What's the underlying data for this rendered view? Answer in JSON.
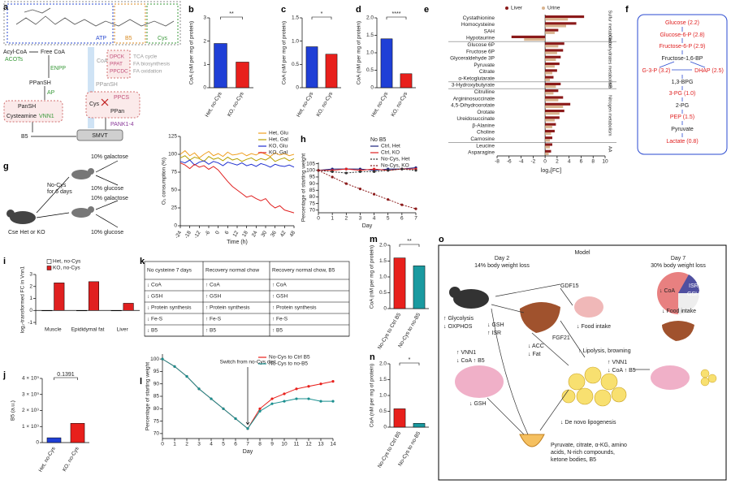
{
  "panel_labels": [
    "a",
    "b",
    "c",
    "d",
    "e",
    "f",
    "g",
    "h",
    "i",
    "j",
    "k",
    "l",
    "m",
    "n",
    "o"
  ],
  "diagram_a": {
    "atp": "ATP",
    "b5_top": "B5",
    "cys_top": "Cys",
    "acyl_coa": "Acyl-CoA",
    "acots": "ACOTs",
    "free_coa": "Free CoA",
    "enpp": "ENPP",
    "ppansh": "PPanSH",
    "ap": "AP",
    "pansh": "PanSH",
    "cysteamine": "Cysteamine",
    "vnn1": "VNN1",
    "b5_out": "B5",
    "smvt": "SMVT",
    "coa": "CoA",
    "enzymes": [
      "DPCK",
      "PPAT",
      "PPCDC"
    ],
    "fates": [
      "TCA cycle",
      "FA biosynthesis",
      "FA oxidation"
    ],
    "ppansh_in": "PPanSH",
    "cys_in": "Cys",
    "ppcs": "PPCS",
    "ppan": "PPan",
    "pank": "PANK1-4"
  },
  "diagram_f": {
    "nodes": [
      "Glucose (2.2)",
      "Glucose-6-P (2.8)",
      "Fructose-6-P (2.9)",
      "Fructose-1,6-BP",
      "G-3-P (3.2)",
      "DHAP (2.5)",
      "1,3-BPG",
      "3-PG (1.0)",
      "2-PG",
      "PEP (1.5)",
      "Pyruvate",
      "Lactate (0.8)"
    ]
  },
  "schematic_g": {
    "treatment": [
      "No-Cys",
      "for 6 days"
    ],
    "mice": "Cse Het or KO",
    "media": [
      "10% galactose",
      "10% glucose",
      "10% galactose",
      "10% glucose"
    ]
  },
  "table_k": {
    "header": [
      "No cysteine 7 days",
      "Recovery normal chow",
      "Recovery normal chow, B5"
    ],
    "rows": [
      [
        "↓ CoA",
        "↑ CoA",
        "↑ CoA"
      ],
      [
        "↓ GSH",
        "↑ GSH",
        "↑ GSH"
      ],
      [
        "↓ Protein synthesis",
        "↑ Protein synthesis",
        "↑ Protein synthesis"
      ],
      [
        "↓ Fe-S",
        "↑ Fe-S",
        "↑ Fe-S"
      ],
      [
        "↓ B5",
        "↑ B5",
        "↑ B5"
      ]
    ]
  },
  "model_o": {
    "title": "Model",
    "day2": "Day 2",
    "day2_loss": "14% body weight loss",
    "day7": "Day 7",
    "day7_loss": "30% body weight loss",
    "gdf15": "GDF15",
    "food_intake": "↓ Food intake",
    "glycolysis": "↑ Glycolysis",
    "oxphos": "↓ OXPHOS",
    "gsh_liver": "↓ GSH",
    "isr_liver": "↑ ISR",
    "fgf21": "FGF21",
    "acc": "↓ ACC",
    "fat": "↓ Fat",
    "lipolysis": "↑ Lipolysis, browning",
    "vnn1_muscle": "↑ VNN1",
    "coa_muscle": "↓ CoA ↑ B5",
    "vnn1_fat": "↑ VNN1",
    "coa_fat": "↓ CoA ↑ B5",
    "gsh_muscle": "↓ GSH",
    "lipogenesis": "↓ De novo lipogenesis",
    "urine": [
      "Pyruvate, citrate, α-KG, amino",
      "acids, N-rich compounds,",
      "ketone bodies, B5"
    ],
    "coa7": "↓ CoA",
    "isr7": "ISR",
    "gsh7": "GSH",
    "food7": "↓ Food intake"
  },
  "chart_data": [
    {
      "type": "bar",
      "ylabel": "CoA (nM per mg of protein)",
      "categories": [
        "Het, no-Cys",
        "KO, no-Cys"
      ],
      "values": [
        1.9,
        1.1
      ],
      "colors": [
        "#1f3fd6",
        "#e8201c"
      ],
      "ylim": [
        0,
        3
      ],
      "yticks": [
        0,
        1,
        2,
        3
      ],
      "annotation": "**"
    },
    {
      "type": "bar",
      "ylabel": "CoA (nM per mg of protein)",
      "categories": [
        "Het, no-Cys",
        "KO, no-Cys"
      ],
      "values": [
        0.88,
        0.72
      ],
      "colors": [
        "#1f3fd6",
        "#e8201c"
      ],
      "ylim": [
        0,
        1.5
      ],
      "yticks": [
        0,
        0.5,
        {
          "value": 1,
          "label": "1.0"
        },
        1.5
      ],
      "annotation": "*"
    },
    {
      "type": "bar",
      "ylabel": "CoA (nM per mg of protein)",
      "categories": [
        "Het, no-Cys",
        "KO, no-Cys"
      ],
      "values": [
        1.4,
        0.4
      ],
      "colors": [
        "#1f3fd6",
        "#e8201c"
      ],
      "ylim": [
        0,
        2
      ],
      "yticks": [
        0,
        0.5,
        {
          "value": 1,
          "label": "1.0"
        },
        1.5,
        {
          "value": 2,
          "label": "2.0"
        }
      ],
      "annotation": "****"
    },
    {
      "type": "hbar",
      "xlabel": "log₂[FC]",
      "xlim": [
        -8,
        10
      ],
      "xticks": [
        -8,
        -6,
        -4,
        -2,
        0,
        2,
        4,
        6,
        8,
        10
      ],
      "groups": [
        {
          "label": "Sulfur metabolism",
          "categories": [
            "Cystathionine",
            "Homocysteine",
            "SAH",
            "Hypotaurine"
          ]
        },
        {
          "label": "Carbohydrates metabolism",
          "categories": [
            "Glucose 6P",
            "Fructose 6P",
            "Glyceraldehyde 3P",
            "Pyruvate",
            "Citrate",
            "α-Ketoglutarate"
          ]
        },
        {
          "label": "KB",
          "categories": [
            "3-Hydroxybutyrate"
          ]
        },
        {
          "label": "Nitrogen metabolism",
          "categories": [
            "Citrulline",
            "Argininosuccinate",
            "4,5-Dihydroorotate",
            "Orotate",
            "Ureidosuccinate",
            "β-Alanine",
            "Choline",
            "Carnosine"
          ]
        },
        {
          "label": "AA",
          "categories": [
            "Leucine",
            "Asparagine"
          ]
        }
      ],
      "series": [
        {
          "name": "Liver",
          "color": "#8b1a1a",
          "values": [
            [
              6.5,
              5.2,
              2.2,
              -5.6
            ],
            [
              3.2,
              3.0,
              2.6,
              2.4,
              2.0,
              1.4
            ],
            [
              2.6
            ],
            [
              2.2,
              3.0,
              4.2,
              3.2,
              2.4,
              1.8,
              1.6,
              1.2
            ],
            [
              1.2,
              1.0
            ]
          ]
        },
        {
          "name": "Urine",
          "color": "#d9b48f",
          "values": [
            [
              3.8,
              3.5,
              1.6,
              -3.5
            ],
            [
              2.2,
              2.0,
              1.8,
              1.6,
              1.2,
              0.8
            ],
            [
              1.8
            ],
            [
              1.4,
              2.2,
              3.0,
              2.4,
              1.6,
              1.2,
              1.0,
              0.8
            ],
            [
              0.8,
              0.6
            ]
          ]
        }
      ]
    },
    {
      "type": "line",
      "ylabel": "O₂ consumption (%)",
      "xlabel": "Time (h)",
      "x": [
        -24,
        -21,
        -18,
        -15,
        -12,
        -9,
        -6,
        -3,
        0,
        3,
        6,
        9,
        12,
        15,
        18,
        21,
        24,
        27,
        30,
        33,
        36,
        39,
        42,
        45,
        48
      ],
      "xlim": [
        -24,
        48
      ],
      "xticks": [
        -24,
        -18,
        -12,
        -6,
        0,
        6,
        12,
        18,
        24,
        30,
        36,
        42,
        48
      ],
      "ylim": [
        0,
        125
      ],
      "yticks": [
        0,
        25,
        50,
        75,
        100,
        125
      ],
      "series": [
        {
          "name": "Het, Glu",
          "color": "#f0a020",
          "values": [
            100,
            105,
            98,
            102,
            95,
            100,
            104,
            98,
            101,
            97,
            103,
            99,
            100,
            102,
            98,
            101,
            99,
            103,
            100,
            97,
            102,
            99,
            101,
            98,
            100
          ]
        },
        {
          "name": "Het, Gal",
          "color": "#b8a000",
          "values": [
            95,
            98,
            92,
            96,
            94,
            90,
            97,
            93,
            95,
            91,
            96,
            92,
            94,
            90,
            93,
            95,
            91,
            94,
            92,
            96,
            90,
            93,
            95,
            91,
            94
          ]
        },
        {
          "name": "KO, Glu",
          "color": "#2030d0",
          "values": [
            90,
            88,
            92,
            85,
            89,
            91,
            86,
            90,
            88,
            84,
            89,
            87,
            85,
            88,
            84,
            86,
            83,
            87,
            85,
            82,
            86,
            84,
            83,
            85,
            82
          ]
        },
        {
          "name": "KO, Gal",
          "color": "#e02020",
          "values": [
            88,
            85,
            80,
            86,
            82,
            84,
            79,
            83,
            78,
            70,
            62,
            55,
            50,
            45,
            40,
            42,
            38,
            35,
            38,
            30,
            25,
            28,
            22,
            20,
            18
          ]
        }
      ]
    },
    {
      "type": "line",
      "ylabel": "Percentage of starting weight",
      "xlabel": "Day",
      "legend_title": "No B5",
      "markers": true,
      "x": [
        0,
        1,
        2,
        3,
        4,
        5,
        6,
        7
      ],
      "xlim": [
        0,
        7
      ],
      "xticks": [
        0,
        1,
        2,
        3,
        4,
        5,
        6,
        7
      ],
      "ylim": [
        68,
        106
      ],
      "yticks": [
        70,
        75,
        80,
        85,
        90,
        95,
        100,
        105
      ],
      "series": [
        {
          "name": "Ctrl, Het",
          "color": "#1a237e",
          "values": [
            100,
            101,
            101,
            101,
            100,
            101,
            101,
            102
          ]
        },
        {
          "name": "Ctrl, KO",
          "color": "#e02020",
          "values": [
            100,
            100,
            101,
            100,
            101,
            100,
            101,
            101
          ]
        },
        {
          "name": "No-Cys, Het",
          "color": "#333333",
          "dash": true,
          "values": [
            100,
            99,
            98,
            99,
            99,
            100,
            101,
            100
          ]
        },
        {
          "name": "No-Cys, KO",
          "color": "#8b1a1a",
          "dash": true,
          "values": [
            100,
            95,
            90,
            86,
            82,
            78,
            74,
            71
          ]
        }
      ]
    },
    {
      "type": "bar",
      "ylabel": "log₂-transformed FC in Vnn1",
      "categories": [
        "Muscle",
        "Epididymal fat",
        "Liver"
      ],
      "ylim": [
        -1.2,
        3
      ],
      "yticks": [
        -1,
        0,
        1,
        2,
        3
      ],
      "series": [
        {
          "name": "Het, no-Cys",
          "color": "#ffffff",
          "values": [
            0,
            0,
            0
          ]
        },
        {
          "name": "KO, no-Cys",
          "color": "#e02020",
          "values": [
            2.3,
            2.4,
            0.6
          ]
        }
      ]
    },
    {
      "type": "bar",
      "ylabel": "B5 (a.u.)",
      "categories": [
        "Het, no-Cys",
        "KO, no-Cys"
      ],
      "values": [
        300000000,
        1200000000
      ],
      "colors": [
        "#1f3fd6",
        "#e8201c"
      ],
      "ylim": [
        0,
        4000000000
      ],
      "yticks": [
        0,
        {
          "value": 1000000000,
          "label": "1 × 10⁹"
        },
        {
          "value": 2000000000,
          "label": "2 × 10⁹"
        },
        {
          "value": 3000000000,
          "label": "3 × 10⁹"
        },
        {
          "value": 4000000000,
          "label": "4 × 10⁹"
        }
      ],
      "annotation": "0.1391"
    },
    {
      "type": "line",
      "ylabel": "Percentage of starting weight",
      "xlabel": "Day",
      "annotation": "Switch from no-Cys diet",
      "markers": true,
      "x": [
        0,
        1,
        2,
        3,
        4,
        5,
        6,
        7,
        8,
        9,
        10,
        11,
        12,
        13,
        14
      ],
      "xlim": [
        0,
        14
      ],
      "xticks": [
        0,
        1,
        2,
        3,
        4,
        5,
        6,
        7,
        8,
        9,
        10,
        11,
        12,
        13,
        14
      ],
      "ylim": [
        68,
        102
      ],
      "yticks": [
        70,
        75,
        80,
        85,
        90,
        95,
        100
      ],
      "series": [
        {
          "name": "No-Cys to Ctrl B5",
          "color": "#e8201c",
          "values": [
            100,
            97,
            93,
            88,
            84,
            80,
            76,
            72,
            80,
            84,
            86,
            88,
            89,
            90,
            91
          ]
        },
        {
          "name": "No-Cys to no-B5",
          "color": "#1a8f8f",
          "values": [
            100,
            97,
            93,
            88,
            84,
            80,
            76,
            72,
            79,
            82,
            83,
            84,
            84,
            83,
            83
          ]
        }
      ]
    },
    {
      "type": "bar",
      "ylabel": "CoA (nM per mg of protein)",
      "categories": [
        "No-Cys to Ctrl B5",
        "No-Cys to no-B5"
      ],
      "values": [
        1.6,
        1.35
      ],
      "colors": [
        "#e8201c",
        "#1a9aa0"
      ],
      "ylim": [
        0,
        2
      ],
      "yticks": [
        0,
        0.5,
        {
          "value": 1,
          "label": "1.0"
        },
        1.5,
        {
          "value": 2,
          "label": "2.0"
        }
      ],
      "annotation": "**"
    },
    {
      "type": "bar",
      "ylabel": "CoA (nM per mg of protein)",
      "categories": [
        "No-Cys to Ctrl B5",
        "No-Cys to no-B5"
      ],
      "values": [
        0.58,
        0.12
      ],
      "colors": [
        "#e8201c",
        "#1a9aa0"
      ],
      "ylim": [
        0,
        2
      ],
      "yticks": [
        0,
        0.5,
        {
          "value": 1,
          "label": "1.0"
        },
        1.5,
        {
          "value": 2,
          "label": "2.0"
        }
      ],
      "annotation": "*"
    }
  ]
}
